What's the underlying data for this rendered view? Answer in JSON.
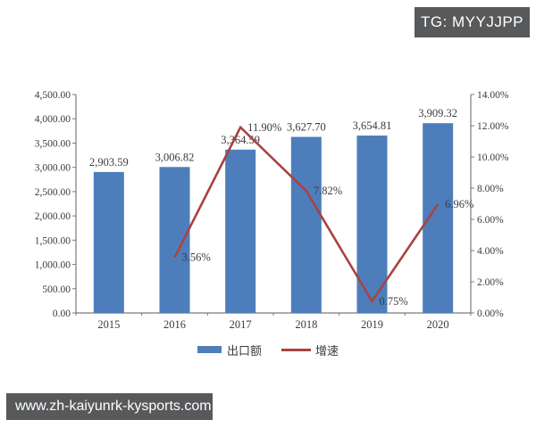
{
  "badges": {
    "tg": "TG: MYYJJPP",
    "url": "www.zh-kaiyunrk-kysports.com"
  },
  "chart_data": {
    "type": "bar+line",
    "categories": [
      "2015",
      "2016",
      "2017",
      "2018",
      "2019",
      "2020"
    ],
    "series": [
      {
        "name": "出口额",
        "type": "bar",
        "axis": "left",
        "color": "#4d7ebb",
        "values": [
          2903.59,
          3006.82,
          3364.59,
          3627.7,
          3654.81,
          3909.32
        ],
        "labels": [
          "2,903.59",
          "3,006.82",
          "3,364.59",
          "3,627.70",
          "3,654.81",
          "3,909.32"
        ]
      },
      {
        "name": "增速",
        "type": "line",
        "axis": "right",
        "color": "#a84340",
        "values": [
          null,
          3.56,
          11.9,
          7.82,
          0.75,
          6.96
        ],
        "labels": [
          null,
          "3.56%",
          "11.90%",
          "7.82%",
          "0.75%",
          "6.96%"
        ]
      }
    ],
    "left_axis": {
      "min": 0,
      "max": 4500,
      "step": 500,
      "tick_labels": [
        "4,500.00",
        "4,000.00",
        "3,500.00",
        "3,000.00",
        "2,500.00",
        "2,000.00",
        "1,500.00",
        "1,000.00",
        "500.00",
        "0.00"
      ]
    },
    "right_axis": {
      "min": 0,
      "max": 14,
      "step": 2,
      "tick_labels": [
        "14.00%",
        "12.00%",
        "10.00%",
        "8.00%",
        "6.00%",
        "4.00%",
        "2.00%",
        "0.00%"
      ]
    },
    "legend_position": "bottom",
    "grid": false,
    "title": ""
  }
}
